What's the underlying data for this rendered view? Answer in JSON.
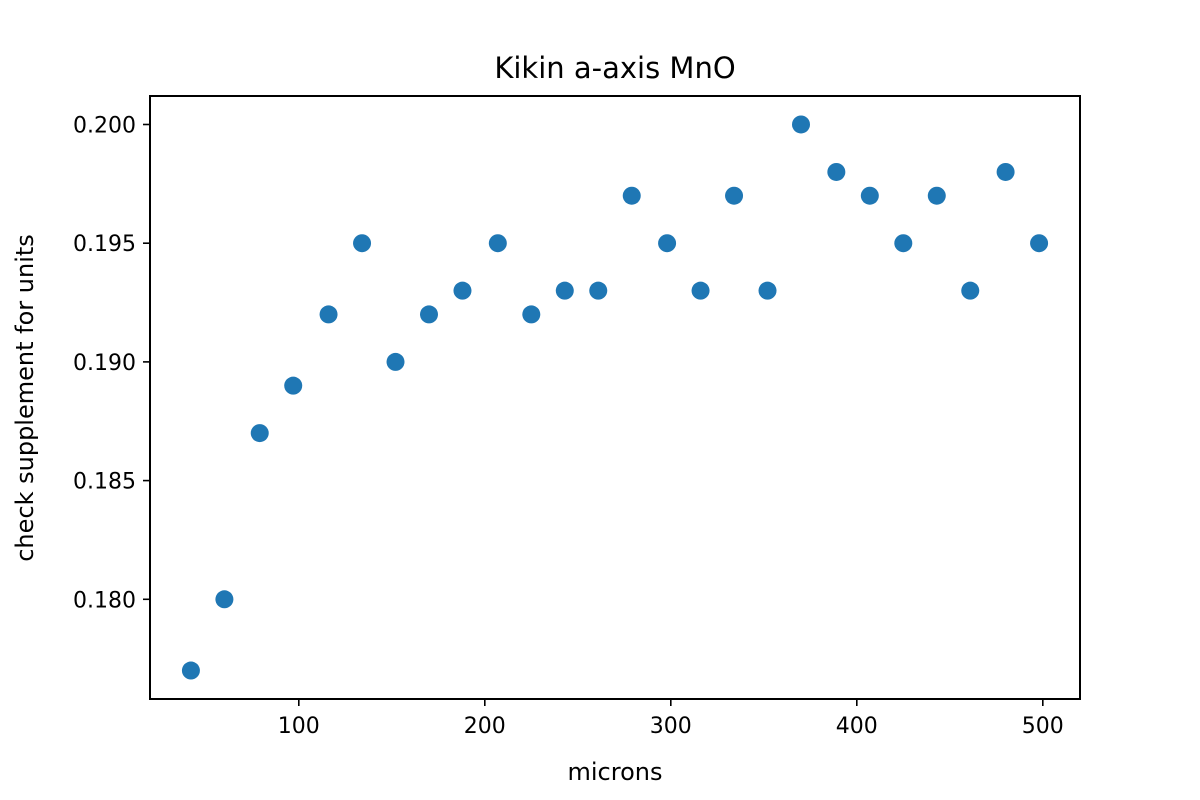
{
  "chart_data": {
    "type": "scatter",
    "title": "Kikin a-axis MnO",
    "xlabel": "microns",
    "ylabel": "check supplement for units",
    "xlim": [
      20,
      520
    ],
    "ylim": [
      0.1758,
      0.2012
    ],
    "xticks": [
      {
        "value": 100,
        "label": "100"
      },
      {
        "value": 200,
        "label": "200"
      },
      {
        "value": 300,
        "label": "300"
      },
      {
        "value": 400,
        "label": "400"
      },
      {
        "value": 500,
        "label": "500"
      }
    ],
    "yticks": [
      {
        "value": 0.18,
        "label": "0.180"
      },
      {
        "value": 0.185,
        "label": "0.185"
      },
      {
        "value": 0.19,
        "label": "0.190"
      },
      {
        "value": 0.195,
        "label": "0.195"
      },
      {
        "value": 0.2,
        "label": "0.200"
      }
    ],
    "grid": false,
    "marker_color": "#1f77b4",
    "series": [
      {
        "x": [
          42,
          60,
          79,
          97,
          116,
          134,
          152,
          170,
          188,
          207,
          225,
          243,
          261,
          279,
          298,
          316,
          334,
          352,
          370,
          389,
          407,
          425,
          443,
          461,
          480,
          498
        ],
        "y": [
          0.177,
          0.18,
          0.187,
          0.189,
          0.192,
          0.195,
          0.19,
          0.192,
          0.193,
          0.195,
          0.192,
          0.193,
          0.193,
          0.197,
          0.195,
          0.193,
          0.197,
          0.193,
          0.2,
          0.198,
          0.197,
          0.195,
          0.197,
          0.193,
          0.198,
          0.195
        ]
      }
    ]
  }
}
